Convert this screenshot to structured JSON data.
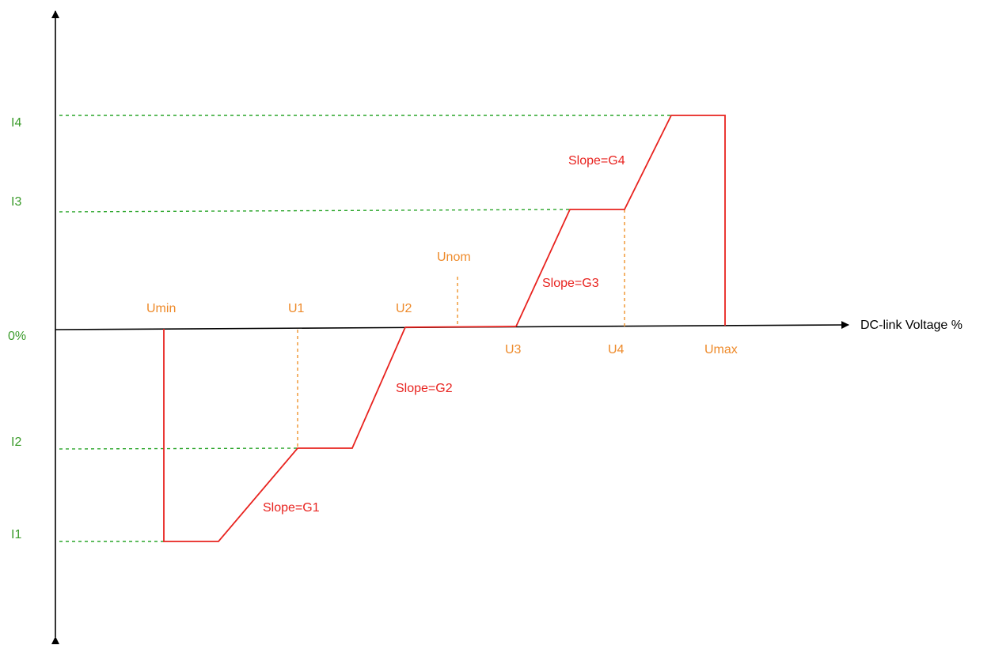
{
  "diagram": {
    "x_axis_label": "DC-link Voltage %",
    "current_labels": {
      "i4": "I4",
      "i3": "I3",
      "zero": "0%",
      "i2": "I2",
      "i1": "I1"
    },
    "voltage_labels": {
      "umin": "Umin",
      "u1": "U1",
      "u2": "U2",
      "unom": "Unom",
      "u3": "U3",
      "u4": "U4",
      "umax": "Umax"
    },
    "slope_labels": {
      "g1": "Slope=G1",
      "g2": "Slope=G2",
      "g3": "Slope=G3",
      "g4": "Slope=G4"
    },
    "colors": {
      "axis": "#000000",
      "curve": "#e8231f",
      "current_guides": "#2aa52a",
      "voltage_guides": "#f0932b",
      "current_text": "#3a9b2a",
      "voltage_text": "#ee8a2a",
      "slope_text": "#e8231f"
    }
  }
}
